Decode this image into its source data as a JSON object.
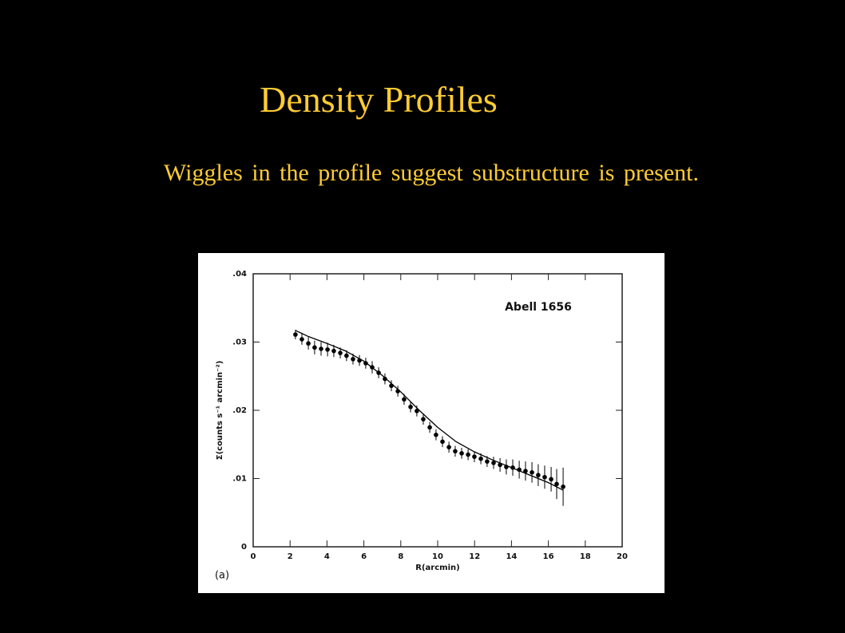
{
  "slide": {
    "title": "Density Profiles",
    "subtitle": "Wiggles in the profile suggest substructure is present."
  },
  "chart_data": {
    "type": "scatter",
    "annotations": [
      "Abell 1656",
      "(a)"
    ],
    "xlabel": "R(arcmin)",
    "ylabel": "Σ(counts s⁻¹ arcmin⁻²)",
    "xlim": [
      0,
      20
    ],
    "xticks": [
      0,
      2,
      4,
      6,
      8,
      10,
      12,
      14,
      16,
      18,
      20
    ],
    "ylim": [
      0,
      0.04
    ],
    "yticks": [
      0,
      {
        "value": 0.01,
        "label": ".01"
      },
      {
        "value": 0.02,
        "label": ".02"
      },
      {
        "value": 0.03,
        "label": ".03"
      },
      {
        "value": 0.04,
        "label": ".04"
      }
    ],
    "series": [
      {
        "type": "scatter",
        "color": "#000000",
        "x": [
          2.29,
          2.64,
          2.99,
          3.33,
          3.68,
          4.03,
          4.37,
          4.72,
          5.06,
          5.41,
          5.76,
          6.1,
          6.45,
          6.8,
          7.14,
          7.49,
          7.84,
          8.18,
          8.53,
          8.87,
          9.22,
          9.57,
          9.91,
          10.26,
          10.61,
          10.95,
          11.3,
          11.65,
          11.99,
          12.34,
          12.68,
          13.03,
          13.38,
          13.72,
          14.07,
          14.42,
          14.76,
          15.11,
          15.45,
          15.8,
          16.15,
          16.45,
          16.8
        ],
        "values": [
          0.0311,
          0.0304,
          0.0298,
          0.0292,
          0.029,
          0.0289,
          0.0287,
          0.0284,
          0.028,
          0.0275,
          0.0273,
          0.0269,
          0.0263,
          0.0255,
          0.0246,
          0.0236,
          0.0228,
          0.0216,
          0.0205,
          0.0199,
          0.0187,
          0.0175,
          0.0164,
          0.0154,
          0.0146,
          0.014,
          0.0137,
          0.0135,
          0.0132,
          0.0129,
          0.0125,
          0.0123,
          0.012,
          0.0117,
          0.0116,
          0.0113,
          0.0111,
          0.0109,
          0.0105,
          0.0102,
          0.0099,
          0.0092,
          0.0088
        ],
        "errors": [
          0.0007,
          0.0008,
          0.0009,
          0.001,
          0.001,
          0.001,
          0.0009,
          0.0008,
          0.0008,
          0.0008,
          0.0008,
          0.0008,
          0.0009,
          0.0008,
          0.0008,
          0.0008,
          0.0008,
          0.0008,
          0.0008,
          0.0008,
          0.0008,
          0.0008,
          0.0008,
          0.0008,
          0.0008,
          0.0008,
          0.0008,
          0.0008,
          0.0008,
          0.0008,
          0.0008,
          0.0009,
          0.001,
          0.0011,
          0.0012,
          0.0013,
          0.0014,
          0.0015,
          0.0016,
          0.0017,
          0.0018,
          0.0022,
          0.0028
        ]
      },
      {
        "type": "line",
        "color": "#000000",
        "x": [
          2.29,
          3,
          4,
          5,
          6,
          7,
          8,
          9,
          10,
          11,
          12,
          13,
          14,
          15,
          16,
          16.8
        ],
        "values": [
          0.0317,
          0.0308,
          0.0298,
          0.0287,
          0.0272,
          0.0251,
          0.0227,
          0.02,
          0.0175,
          0.0154,
          0.0139,
          0.0127,
          0.0116,
          0.0105,
          0.0094,
          0.0083
        ]
      }
    ]
  }
}
